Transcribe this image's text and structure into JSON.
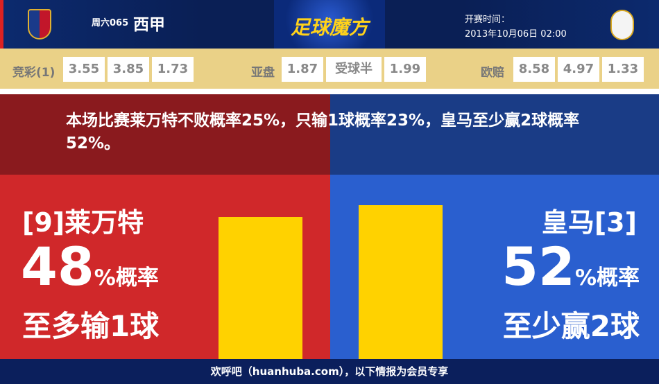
{
  "header": {
    "match_no": "周六065",
    "league": "西甲",
    "logo_text": "足球魔方",
    "kickoff_label": "开赛时间：",
    "kickoff_time": "2013年10月06日 02:00",
    "home_crest": "levante-crest",
    "away_crest": "real-madrid-crest"
  },
  "odds": {
    "jingcai": {
      "label": "竞彩(1)",
      "values": [
        "3.55",
        "3.85",
        "1.73"
      ]
    },
    "yapan": {
      "label": "亚盘",
      "values": [
        "1.87",
        "受球半",
        "1.99"
      ]
    },
    "oupei": {
      "label": "欧赔",
      "values": [
        "8.58",
        "4.97",
        "1.33"
      ]
    }
  },
  "summary": "本场比赛莱万特不败概率25%，只输1球概率23%，皇马至少赢2球概率52%。",
  "home": {
    "name": "[9]莱万特",
    "percent": "48",
    "percent_suffix": "%概率",
    "outcome": "至多输1球",
    "probability": 48
  },
  "away": {
    "name": "皇马[3]",
    "percent": "52",
    "percent_suffix": "%概率",
    "outcome": "至少赢2球",
    "probability": 52
  },
  "footer": "欢呼吧（huanhuba.com），以下情报为会员专享",
  "colors": {
    "home": "#d0282a",
    "away": "#2a5fcf",
    "bar": "#ffd200",
    "odds_bg": "#ead187"
  }
}
